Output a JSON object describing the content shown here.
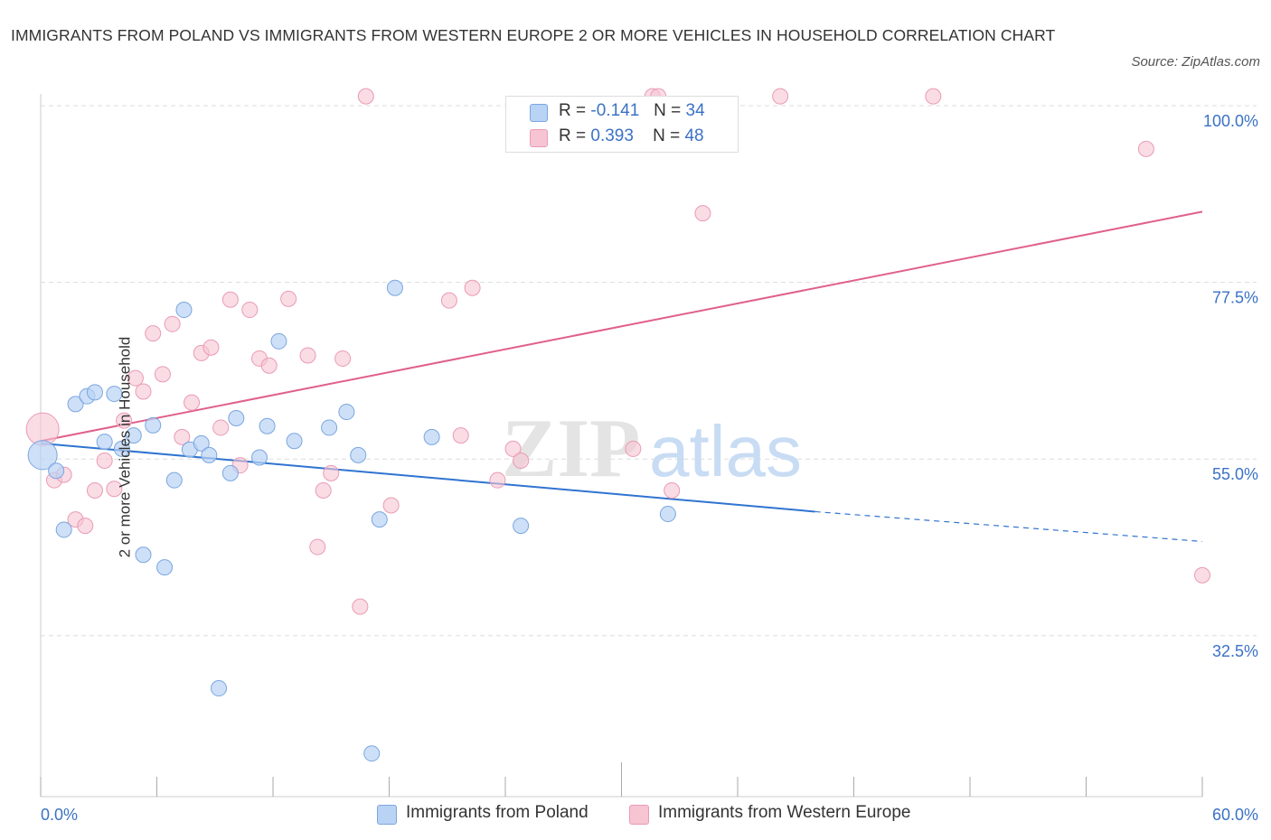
{
  "title": "IMMIGRANTS FROM POLAND VS IMMIGRANTS FROM WESTERN EUROPE 2 OR MORE VEHICLES IN HOUSEHOLD CORRELATION CHART",
  "source": "Source: ZipAtlas.com",
  "watermark": {
    "zip": "ZIP",
    "atlas": "atlas"
  },
  "legend": {
    "rows": [
      {
        "r_label": "R =",
        "r_value": "-0.141",
        "n_label": "N =",
        "n_value": "34",
        "color": "#b9d3f5"
      },
      {
        "r_label": "R =",
        "r_value": "0.393",
        "n_label": "N =",
        "n_value": "48",
        "color": "#f7c4d3"
      }
    ]
  },
  "bottom_legend": [
    "Immigrants from Poland",
    "Immigrants from Western Europe"
  ],
  "colors": {
    "poland_fill": "#b9d3f5",
    "poland_stroke": "#7aa6e0",
    "poland_line": "#2f74d0",
    "we_fill": "#f7c4d3",
    "we_stroke": "#ea9bb5",
    "we_line": "#e0608a",
    "axis_label": "#3a72c4",
    "grid": "#dddddd"
  },
  "chart_data": {
    "type": "scatter",
    "title": "IMMIGRANTS FROM POLAND VS IMMIGRANTS FROM WESTERN EUROPE 2 OR MORE VEHICLES IN HOUSEHOLD CORRELATION CHART",
    "xlabel": "",
    "ylabel": "2 or more Vehicles in Household",
    "xlim": [
      0,
      60
    ],
    "ylim": [
      12,
      101.5
    ],
    "x_tick_labels": [
      "0.0%",
      "60.0%"
    ],
    "y_ticks": [
      32.5,
      55.0,
      77.5,
      100.0
    ],
    "y_tick_labels": [
      "32.5%",
      "55.0%",
      "77.5%",
      "100.0%"
    ],
    "grid": true,
    "legend_position": "top-center",
    "series": [
      {
        "name": "Immigrants from Poland",
        "r": -0.141,
        "n": 34,
        "trend": {
          "x": [
            0,
            40,
            60
          ],
          "y": [
            57.0,
            48.3,
            44.5
          ],
          "solid_until": 40
        },
        "points": [
          [
            0.1,
            55.5
          ],
          [
            0.8,
            53.5
          ],
          [
            1.2,
            46.0
          ],
          [
            1.8,
            62.0
          ],
          [
            2.4,
            63.0
          ],
          [
            2.8,
            63.5
          ],
          [
            3.3,
            57.2
          ],
          [
            3.8,
            63.3
          ],
          [
            4.2,
            56.3
          ],
          [
            4.8,
            58.0
          ],
          [
            5.3,
            42.8
          ],
          [
            5.8,
            59.3
          ],
          [
            6.4,
            41.2
          ],
          [
            6.9,
            52.3
          ],
          [
            7.4,
            74.0
          ],
          [
            7.7,
            56.2
          ],
          [
            8.3,
            57.0
          ],
          [
            8.7,
            55.5
          ],
          [
            9.2,
            25.8
          ],
          [
            9.8,
            53.2
          ],
          [
            10.1,
            60.2
          ],
          [
            11.3,
            55.2
          ],
          [
            11.7,
            59.2
          ],
          [
            12.3,
            70.0
          ],
          [
            13.1,
            57.3
          ],
          [
            14.9,
            59.0
          ],
          [
            15.8,
            61.0
          ],
          [
            16.4,
            55.5
          ],
          [
            17.1,
            17.5
          ],
          [
            17.5,
            47.3
          ],
          [
            18.3,
            76.8
          ],
          [
            20.2,
            57.8
          ],
          [
            24.8,
            46.5
          ],
          [
            32.4,
            48.0
          ]
        ]
      },
      {
        "name": "Immigrants from Western Europe",
        "r": 0.393,
        "n": 48,
        "trend": {
          "x": [
            0,
            60
          ],
          "y": [
            57.3,
            86.5
          ]
        },
        "points": [
          [
            0.1,
            58.8
          ],
          [
            0.7,
            52.3
          ],
          [
            1.2,
            53.0
          ],
          [
            1.8,
            47.3
          ],
          [
            2.3,
            46.5
          ],
          [
            2.8,
            51.0
          ],
          [
            3.3,
            54.8
          ],
          [
            3.8,
            51.2
          ],
          [
            4.3,
            59.9
          ],
          [
            4.9,
            65.3
          ],
          [
            5.3,
            63.6
          ],
          [
            5.8,
            71.0
          ],
          [
            6.3,
            65.8
          ],
          [
            6.8,
            72.2
          ],
          [
            7.3,
            57.8
          ],
          [
            7.8,
            62.2
          ],
          [
            8.3,
            68.5
          ],
          [
            8.8,
            69.2
          ],
          [
            9.3,
            59.0
          ],
          [
            9.8,
            75.3
          ],
          [
            10.3,
            54.2
          ],
          [
            10.8,
            74.0
          ],
          [
            11.3,
            67.8
          ],
          [
            11.8,
            66.9
          ],
          [
            12.8,
            75.4
          ],
          [
            13.8,
            68.2
          ],
          [
            14.6,
            51.0
          ],
          [
            15.0,
            53.2
          ],
          [
            15.6,
            67.8
          ],
          [
            14.3,
            43.8
          ],
          [
            16.5,
            36.2
          ],
          [
            16.8,
            101.2
          ],
          [
            18.1,
            49.1
          ],
          [
            21.1,
            75.2
          ],
          [
            21.7,
            58.0
          ],
          [
            22.3,
            76.8
          ],
          [
            23.6,
            52.3
          ],
          [
            24.4,
            56.3
          ],
          [
            24.8,
            54.8
          ],
          [
            30.6,
            56.3
          ],
          [
            31.6,
            101.2
          ],
          [
            31.9,
            101.2
          ],
          [
            32.6,
            51.0
          ],
          [
            34.2,
            86.3
          ],
          [
            38.2,
            101.2
          ],
          [
            46.1,
            101.2
          ],
          [
            57.1,
            94.5
          ],
          [
            60.0,
            40.2
          ]
        ]
      }
    ]
  }
}
